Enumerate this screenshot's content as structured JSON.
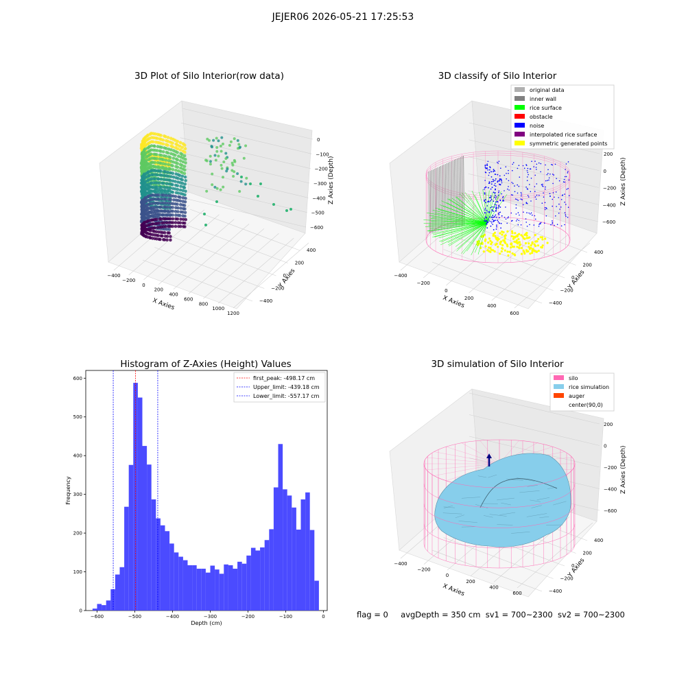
{
  "figure_title": "JEJER06 2026-05-21 17:25:53",
  "colors": {
    "histogram_bar": "#4b4bff",
    "first_peak_line": "#ff0000",
    "limit_lines": "#0000ff",
    "silo_wire": "#ff69b4",
    "rice_surface": "#87ceeb",
    "auger": "#ff4500",
    "original_data": "#b0b0b0",
    "inner_wall": "#808080",
    "rice_surface_class": "#00ff00",
    "obstacle": "#ff0000",
    "noise": "#0000ff",
    "interpolated": "#800080",
    "symmetric": "#ffff00"
  },
  "chart_data": [
    {
      "type": "scatter",
      "title": "3D Plot of Silo Interior(row data)",
      "xlabel": "X Axies",
      "ylabel": "Y Axies",
      "zlabel": "Z Axies (Depth)",
      "x_ticks": [
        "−400",
        "−200",
        "0",
        "200",
        "400",
        "600",
        "800",
        "1000",
        "1200"
      ],
      "y_ticks": [
        "−400",
        "−200",
        "0",
        "200",
        "400"
      ],
      "z_ticks": [
        "0",
        "−100",
        "−200",
        "−300",
        "−400",
        "−500",
        "−600"
      ],
      "colormap": "viridis"
    },
    {
      "type": "scatter",
      "title": "3D classify of Silo Interior",
      "xlabel": "X Axies",
      "ylabel": "Y Axies",
      "zlabel": "Z Axies (Depth)",
      "x_ticks": [
        "−400",
        "−200",
        "0",
        "200",
        "400",
        "600"
      ],
      "y_ticks": [
        "−400",
        "−200",
        "0",
        "200",
        "400"
      ],
      "z_ticks": [
        "200",
        "0",
        "−200",
        "−400",
        "−600"
      ],
      "legend": [
        {
          "label": "original data",
          "color": "#b0b0b0"
        },
        {
          "label": "inner wall",
          "color": "#808080"
        },
        {
          "label": "rice surface",
          "color": "#00ff00"
        },
        {
          "label": "obstacle",
          "color": "#ff0000"
        },
        {
          "label": "noise",
          "color": "#0000ff"
        },
        {
          "label": "interpolated rice surface",
          "color": "#800080"
        },
        {
          "label": "symmetric generated points",
          "color": "#ffff00"
        }
      ],
      "legend_position": "top-right"
    },
    {
      "type": "bar",
      "title": "Histogram of Z-Axies (Height) Values",
      "xlabel": "Depth (cm)",
      "ylabel": "Frequency",
      "xlim": [
        -630,
        10
      ],
      "ylim": [
        0,
        620
      ],
      "x_ticks": [
        -600,
        -500,
        -400,
        -300,
        -200,
        -100,
        0
      ],
      "x_tick_labels": [
        "−600",
        "−500",
        "−400",
        "−300",
        "−200",
        "−100",
        "0"
      ],
      "y_ticks": [
        0,
        100,
        200,
        300,
        400,
        500,
        600
      ],
      "bin_start": -612,
      "bin_width": 12,
      "values": [
        5,
        17,
        14,
        26,
        55,
        93,
        112,
        268,
        376,
        588,
        550,
        425,
        377,
        287,
        238,
        220,
        205,
        173,
        150,
        139,
        130,
        117,
        117,
        108,
        108,
        98,
        116,
        106,
        95,
        119,
        117,
        108,
        126,
        121,
        142,
        162,
        155,
        163,
        182,
        210,
        318,
        430,
        313,
        297,
        266,
        209,
        287,
        305,
        208,
        77
      ],
      "vlines": [
        {
          "label": "first_peak: -498.17 cm",
          "x": -498.17,
          "color": "#ff0000"
        },
        {
          "label": "Upper_limit: -439.18 cm",
          "x": -439.18,
          "color": "#0000ff"
        },
        {
          "label": "Lower_limit: -557.17 cm",
          "x": -557.17,
          "color": "#0000ff"
        }
      ],
      "legend_position": "top-right"
    },
    {
      "type": "surface",
      "title": "3D simulation of Silo Interior",
      "xlabel": "X Axies",
      "ylabel": "Y Axies",
      "zlabel": "Z Axies (Depth)",
      "x_ticks": [
        "−400",
        "−200",
        "0",
        "200",
        "400",
        "600"
      ],
      "y_ticks": [
        "−400",
        "−200",
        "0",
        "200",
        "400"
      ],
      "z_ticks": [
        "200",
        "0",
        "−200",
        "−400",
        "−600"
      ],
      "legend": [
        {
          "label": "silo",
          "color": "#ff69b4"
        },
        {
          "label": "rice simulation",
          "color": "#87ceeb"
        },
        {
          "label": "auger",
          "color": "#ff4500"
        },
        {
          "label": "center(90,0)",
          "color": ""
        }
      ],
      "legend_position": "top-right"
    }
  ],
  "footer": {
    "flag": "flag = 0",
    "avg_depth": "avgDepth = 350 cm",
    "sv1": "sv1 = 700~2300",
    "sv2": "sv2 = 700~2300"
  }
}
